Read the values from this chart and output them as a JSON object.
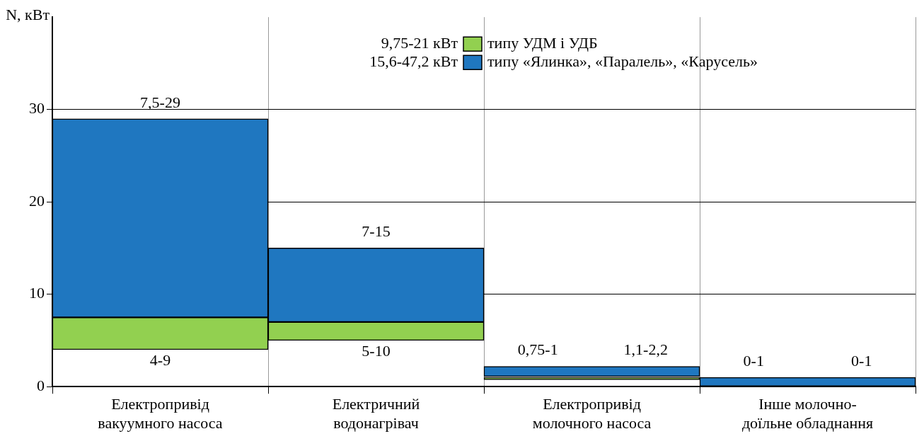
{
  "chart_data": {
    "type": "bar",
    "ylabel": "N, кВт",
    "categories": [
      "Електропривід\nвакуумного насоса",
      "Електричний\nводонагрівач",
      "Електропривід\nмолочного насоса",
      "Інше молочно-\nдоїльне обладнання"
    ],
    "series": [
      {
        "name": "типу УДМ і УДБ",
        "color": "#92d050",
        "base": [
          4,
          5,
          0.75,
          null
        ],
        "values": [
          3.5,
          2,
          0.25,
          null
        ],
        "value_labels": [
          "4-9",
          "5-10",
          "0,75-1",
          "0-1"
        ]
      },
      {
        "name": "типу «Ялинка», «Паралель», «Карусель»",
        "color": "#1f77c0",
        "base": [
          7.5,
          7,
          1.1,
          0
        ],
        "values": [
          21.5,
          8,
          1.1,
          1
        ],
        "value_labels": [
          "7,5-29",
          "7-15",
          "1,1-2,2",
          "0-1"
        ]
      }
    ],
    "ylim": [
      0,
      40
    ],
    "yticks": [
      0,
      10,
      20,
      30
    ],
    "grid": true,
    "legend": "top right",
    "annotations": [
      "9,75-21 кВт",
      "15,6-47,2 кВт"
    ]
  }
}
